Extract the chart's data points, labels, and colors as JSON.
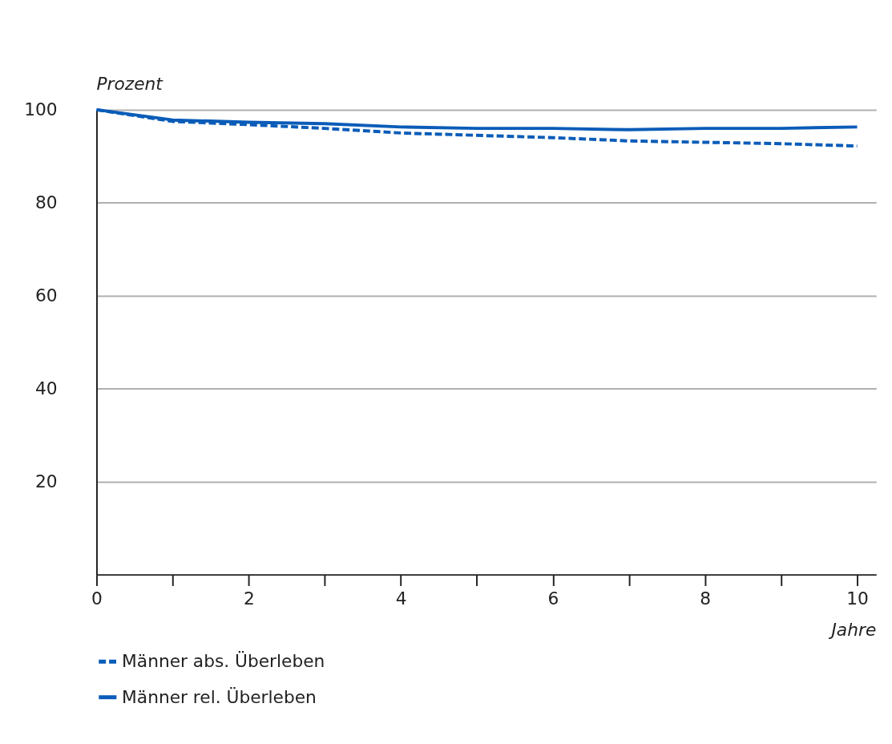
{
  "chart_data": {
    "type": "line",
    "ylabel": "Prozent",
    "xlabel": "Jahre",
    "x": [
      0,
      1,
      2,
      3,
      4,
      5,
      6,
      7,
      8,
      9,
      10
    ],
    "series": [
      {
        "name": "Männer abs. Überleben",
        "color": "#0a5cb8",
        "line_style": "dashed",
        "values": [
          100,
          97.5,
          96.8,
          96,
          95,
          94.5,
          94,
          93.3,
          93,
          92.7,
          92.2
        ]
      },
      {
        "name": "Männer rel. Überleben",
        "color": "#0a5cb8",
        "line_style": "solid",
        "values": [
          100,
          97.8,
          97.3,
          97,
          96.3,
          96,
          96,
          95.7,
          96,
          96,
          96.3
        ]
      }
    ],
    "xlim": [
      0,
      10.25
    ],
    "ylim": [
      0,
      100
    ],
    "xticks": [
      0,
      {
        "value": 1,
        "label": null
      },
      2,
      {
        "value": 3,
        "label": null
      },
      4,
      {
        "value": 5,
        "label": null
      },
      6,
      {
        "value": 7,
        "label": null
      },
      8,
      {
        "value": 9,
        "label": null
      },
      10
    ],
    "yticks": [
      20,
      40,
      60,
      80,
      100
    ],
    "grid": "y",
    "legend": "bottom",
    "marker": "none"
  }
}
